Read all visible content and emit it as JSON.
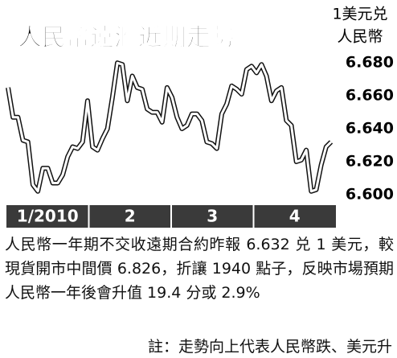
{
  "chart_data": {
    "type": "line",
    "title": "人民幣遠滙近期走勢",
    "y_label_lines": [
      "1美元兑",
      "人民幣"
    ],
    "x_section_labels": [
      "1/2010",
      "2",
      "3",
      "4"
    ],
    "values": [
      6.665,
      6.647,
      6.647,
      6.633,
      6.632,
      6.606,
      6.602,
      6.616,
      6.616,
      6.607,
      6.607,
      6.612,
      6.623,
      6.629,
      6.628,
      6.632,
      6.657,
      6.629,
      6.627,
      6.634,
      6.64,
      6.659,
      6.68,
      6.679,
      6.657,
      6.672,
      6.665,
      6.664,
      6.652,
      6.65,
      6.65,
      6.644,
      6.665,
      6.659,
      6.647,
      6.64,
      6.642,
      6.649,
      6.649,
      6.645,
      6.632,
      6.631,
      6.628,
      6.649,
      6.655,
      6.666,
      6.664,
      6.661,
      6.676,
      6.678,
      6.674,
      6.679,
      6.672,
      6.657,
      6.663,
      6.665,
      6.645,
      6.642,
      6.62,
      6.621,
      6.627,
      6.602,
      6.603,
      6.618,
      6.629,
      6.632
    ],
    "ylim": [
      6.597,
      6.684
    ],
    "yticks": [
      {
        "value": 6.6,
        "label": "6.600"
      },
      {
        "value": 6.62,
        "label": "6.620"
      },
      {
        "value": 6.64,
        "label": "6.640"
      },
      {
        "value": 6.66,
        "label": "6.660"
      },
      {
        "value": 6.68,
        "label": "6.680"
      }
    ],
    "caption": "人民幣一年期不交收遠期合約昨報 6.632 兑 1 美元，較現貨開市中間價 6.826，折讓 1940 點子，反映市場預期人民幣一年後會升值 19.4 分或 2.9%",
    "note": "註：走勢向上代表人民幣跌、美元升"
  }
}
